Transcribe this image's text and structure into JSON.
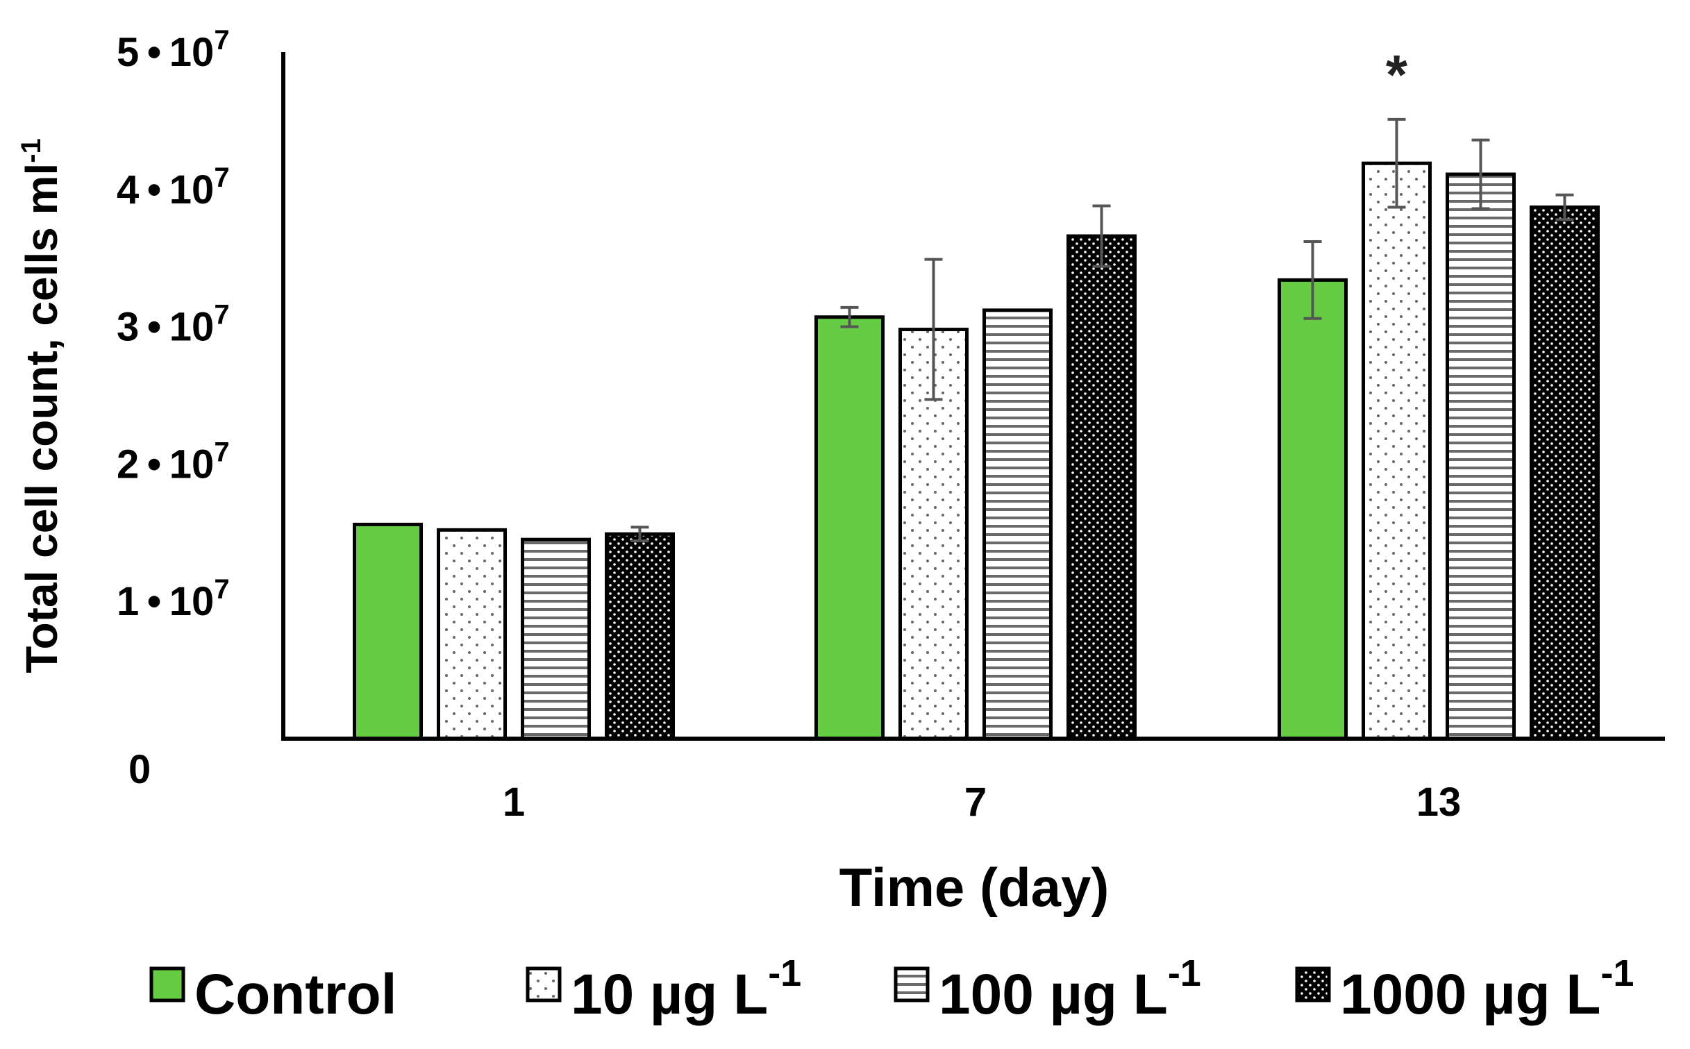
{
  "chart_data": {
    "type": "bar",
    "title": "",
    "xlabel": "Time (day)",
    "ylabel": "Total cell count, cells ml",
    "ylabel_sup": "-1",
    "categories": [
      "1",
      "7",
      "13"
    ],
    "ylim": [
      0,
      50000000
    ],
    "grid": false,
    "legend_position": "bottom",
    "yticks": [
      {
        "value": 0,
        "label": "0",
        "exp": ""
      },
      {
        "value": 10000000,
        "label": "1 • 10",
        "exp": "7"
      },
      {
        "value": 20000000,
        "label": "2 • 10",
        "exp": "7"
      },
      {
        "value": 30000000,
        "label": "3 • 10",
        "exp": "7"
      },
      {
        "value": 40000000,
        "label": "4 • 10",
        "exp": "7"
      },
      {
        "value": 50000000,
        "label": "5 • 10",
        "exp": "7"
      }
    ],
    "series": [
      {
        "name": "Control",
        "unit_sup": "",
        "pattern": "solid-green",
        "values": [
          15600000,
          30700000,
          33400000
        ],
        "errors": [
          0,
          700000,
          2800000
        ]
      },
      {
        "name": "10 µg L",
        "unit_sup": "-1",
        "pattern": "dots-light",
        "values": [
          15200000,
          29800000,
          41900000
        ],
        "errors": [
          0,
          5100000,
          3200000
        ]
      },
      {
        "name": "100 µg L",
        "unit_sup": "-1",
        "pattern": "hlines",
        "values": [
          14500000,
          31200000,
          41100000
        ],
        "errors": [
          0,
          0,
          2500000
        ]
      },
      {
        "name": "1000 µg L",
        "unit_sup": "-1",
        "pattern": "dots-dense",
        "values": [
          14900000,
          36600000,
          38700000
        ],
        "errors": [
          500000,
          2200000,
          900000
        ]
      }
    ],
    "annotations": [
      {
        "text": "*",
        "category": "13",
        "series": "10 µg L"
      }
    ],
    "colors": {
      "control": "#66cc44",
      "axis": "#000000",
      "errorbar": "#555555"
    }
  }
}
